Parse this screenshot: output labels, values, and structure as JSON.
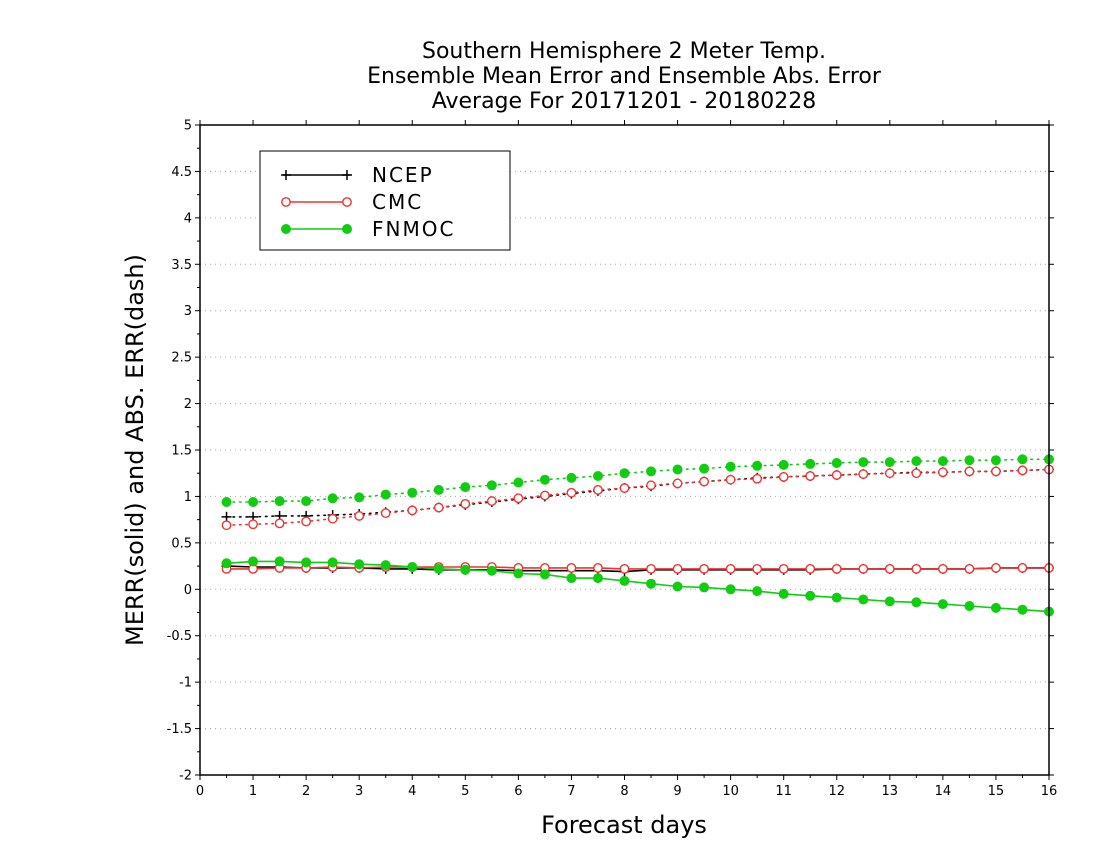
{
  "chart_data": {
    "type": "line",
    "title": [
      "Southern Hemisphere 2 Meter Temp.",
      "Ensemble Mean Error and Ensemble Abs. Error",
      "Average For 20171201 - 20180228"
    ],
    "xlabel": "Forecast days",
    "ylabel": "MERR(solid) and ABS. ERR(dash)",
    "xlim": [
      0,
      16
    ],
    "ylim": [
      -2,
      5
    ],
    "x_ticks": [
      0,
      1,
      2,
      3,
      4,
      5,
      6,
      7,
      8,
      9,
      10,
      11,
      12,
      13,
      14,
      15,
      16
    ],
    "y_ticks": [
      -2,
      -1.5,
      -1,
      -0.5,
      0,
      0.5,
      1,
      1.5,
      2,
      2.5,
      3,
      3.5,
      4,
      4.5,
      5
    ],
    "y_tick_labels": [
      "-2",
      "-1.5",
      "-1",
      "-0.5",
      "0",
      "0.5",
      "1",
      "1.5",
      "2",
      "2.5",
      "3",
      "3.5",
      "4",
      "4.5",
      "5"
    ],
    "grid": "horizontal dotted",
    "legend_position": "top-left",
    "x": [
      0.5,
      1,
      1.5,
      2,
      2.5,
      3,
      3.5,
      4,
      4.5,
      5,
      5.5,
      6,
      6.5,
      7,
      7.5,
      8,
      8.5,
      9,
      9.5,
      10,
      10.5,
      11,
      11.5,
      12,
      12.5,
      13,
      13.5,
      14,
      14.5,
      15,
      15.5,
      16
    ],
    "series": [
      {
        "name": "NCEP",
        "color": "#000000",
        "marker": "plus",
        "merr": [
          0.25,
          0.24,
          0.24,
          0.23,
          0.23,
          0.23,
          0.22,
          0.22,
          0.21,
          0.21,
          0.21,
          0.2,
          0.2,
          0.2,
          0.2,
          0.19,
          0.21,
          0.21,
          0.21,
          0.21,
          0.21,
          0.21,
          0.21,
          0.22,
          0.22,
          0.22,
          0.22,
          0.22,
          0.22,
          0.23,
          0.23,
          0.23
        ],
        "abs_err": [
          0.78,
          0.78,
          0.79,
          0.79,
          0.8,
          0.81,
          0.83,
          0.85,
          0.88,
          0.91,
          0.94,
          0.97,
          1.0,
          1.03,
          1.06,
          1.09,
          1.11,
          1.14,
          1.16,
          1.18,
          1.2,
          1.21,
          1.22,
          1.23,
          1.24,
          1.25,
          1.26,
          1.26,
          1.27,
          1.27,
          1.28,
          1.29
        ]
      },
      {
        "name": "CMC",
        "color": "#ee3333",
        "marker": "open-circle",
        "merr": [
          0.22,
          0.22,
          0.23,
          0.23,
          0.24,
          0.23,
          0.24,
          0.24,
          0.24,
          0.24,
          0.24,
          0.23,
          0.23,
          0.23,
          0.23,
          0.22,
          0.22,
          0.22,
          0.22,
          0.22,
          0.22,
          0.22,
          0.22,
          0.22,
          0.22,
          0.22,
          0.22,
          0.22,
          0.22,
          0.23,
          0.23,
          0.23
        ],
        "abs_err": [
          0.69,
          0.7,
          0.71,
          0.73,
          0.76,
          0.79,
          0.82,
          0.85,
          0.88,
          0.92,
          0.95,
          0.98,
          1.01,
          1.04,
          1.07,
          1.09,
          1.12,
          1.14,
          1.16,
          1.18,
          1.19,
          1.21,
          1.22,
          1.23,
          1.24,
          1.25,
          1.25,
          1.26,
          1.27,
          1.27,
          1.28,
          1.29
        ]
      },
      {
        "name": "FNMOC",
        "color": "#11cc11",
        "marker": "filled-circle",
        "merr": [
          0.28,
          0.3,
          0.3,
          0.29,
          0.29,
          0.27,
          0.26,
          0.24,
          0.22,
          0.21,
          0.2,
          0.17,
          0.16,
          0.12,
          0.12,
          0.09,
          0.06,
          0.03,
          0.02,
          0.0,
          -0.02,
          -0.05,
          -0.07,
          -0.09,
          -0.11,
          -0.13,
          -0.14,
          -0.16,
          -0.18,
          -0.2,
          -0.22,
          -0.24
        ],
        "abs_err": [
          0.94,
          0.94,
          0.95,
          0.95,
          0.98,
          0.99,
          1.02,
          1.04,
          1.07,
          1.1,
          1.12,
          1.15,
          1.18,
          1.2,
          1.22,
          1.25,
          1.27,
          1.29,
          1.3,
          1.32,
          1.33,
          1.34,
          1.35,
          1.36,
          1.37,
          1.37,
          1.38,
          1.38,
          1.39,
          1.39,
          1.4,
          1.4
        ]
      }
    ]
  }
}
